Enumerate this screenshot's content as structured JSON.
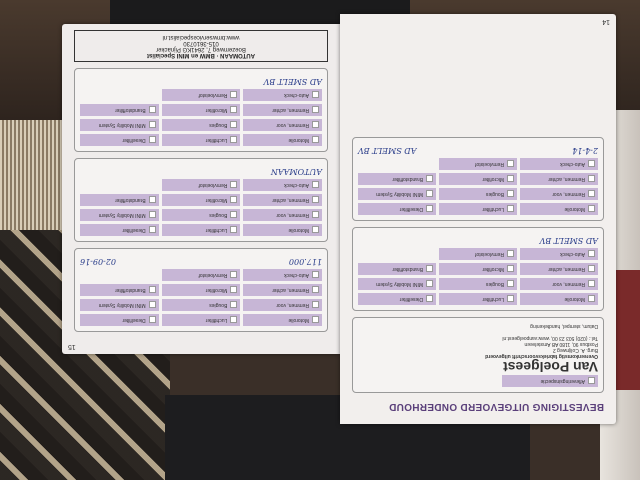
{
  "left_page": {
    "page_number": "15",
    "sections": [
      {
        "items": [
          "Motorolie",
          "Luchtfilter",
          "Dieselfilter",
          "Remmen, voor",
          "Bougies",
          "MINI Mobility System",
          "Remmen, achter",
          "Microfilter",
          "Brandstoffilter",
          "Auto-check",
          "Remvloeistof"
        ],
        "km": "117.000",
        "date": "02-09-16"
      },
      {
        "items": [
          "Motorolie",
          "Luchtfilter",
          "Dieselfilter",
          "Remmen, voor",
          "Bougies",
          "MINI Mobility System",
          "Remmen, achter",
          "Microfilter",
          "Brandstoffilter",
          "Auto-check",
          "Remvloeistof"
        ],
        "stamp": "AUTOMAAN"
      },
      {
        "items": [
          "Motorolie",
          "Luchtfilter",
          "Dieselfilter",
          "Remmen, voor",
          "Bougies",
          "MINI Mobility System",
          "Remmen, achter",
          "Microfilter",
          "Brandstoffilter",
          "Auto-check",
          "Remvloeistof"
        ],
        "stamp": "AD SMELT BV"
      }
    ],
    "stamp": {
      "line1": "AUTOMAAN · BMW en MINI Specialist",
      "line2": "Boezemweg 7, 2641KG Pijnacker",
      "line3": "015-3610730",
      "line4": "www.bmwservicespecialist.nl"
    }
  },
  "right_page": {
    "page_number": "14",
    "title": "BEVESTIGING UITGEVOERD ONDERHOUD",
    "tag": "Afleveringsinspectie",
    "dealer": {
      "name": "Van Poelgeest",
      "subtitle": "Overeenkomstig fabrieksvoorschrift uitgevoerd",
      "address": "Burg. A. Colijnweg 2",
      "postbox": "Postbus 90, 1180 AB Amstelveen",
      "phone": "Tel.: (020) 503 23 00, www.vanpoelgeest.nl"
    },
    "date_label": "Datum, stempel, handtekening",
    "sections": [
      {
        "items": [
          "Motorolie",
          "Luchtfilter",
          "Dieselfilter",
          "Remmen, voor",
          "Bougies",
          "MINI Mobility System",
          "Remmen, achter",
          "Microfilter",
          "Brandstoffilter",
          "Auto-check",
          "Remvloeistof"
        ],
        "stamp": "AD SMELT BV"
      },
      {
        "items": [
          "Motorolie",
          "Luchtfilter",
          "Dieselfilter",
          "Remmen, voor",
          "Bougies",
          "MINI Mobility System",
          "Remmen, achter",
          "Microfilter",
          "Brandstoffilter",
          "Auto-check",
          "Remvloeistof"
        ],
        "stamp": "AD SMELT BV",
        "date": "2-4-14"
      }
    ]
  },
  "colors": {
    "row_purple": "#c7b6d6",
    "title_purple": "#5a3f7a",
    "ink_blue": "#2a3d8a"
  }
}
